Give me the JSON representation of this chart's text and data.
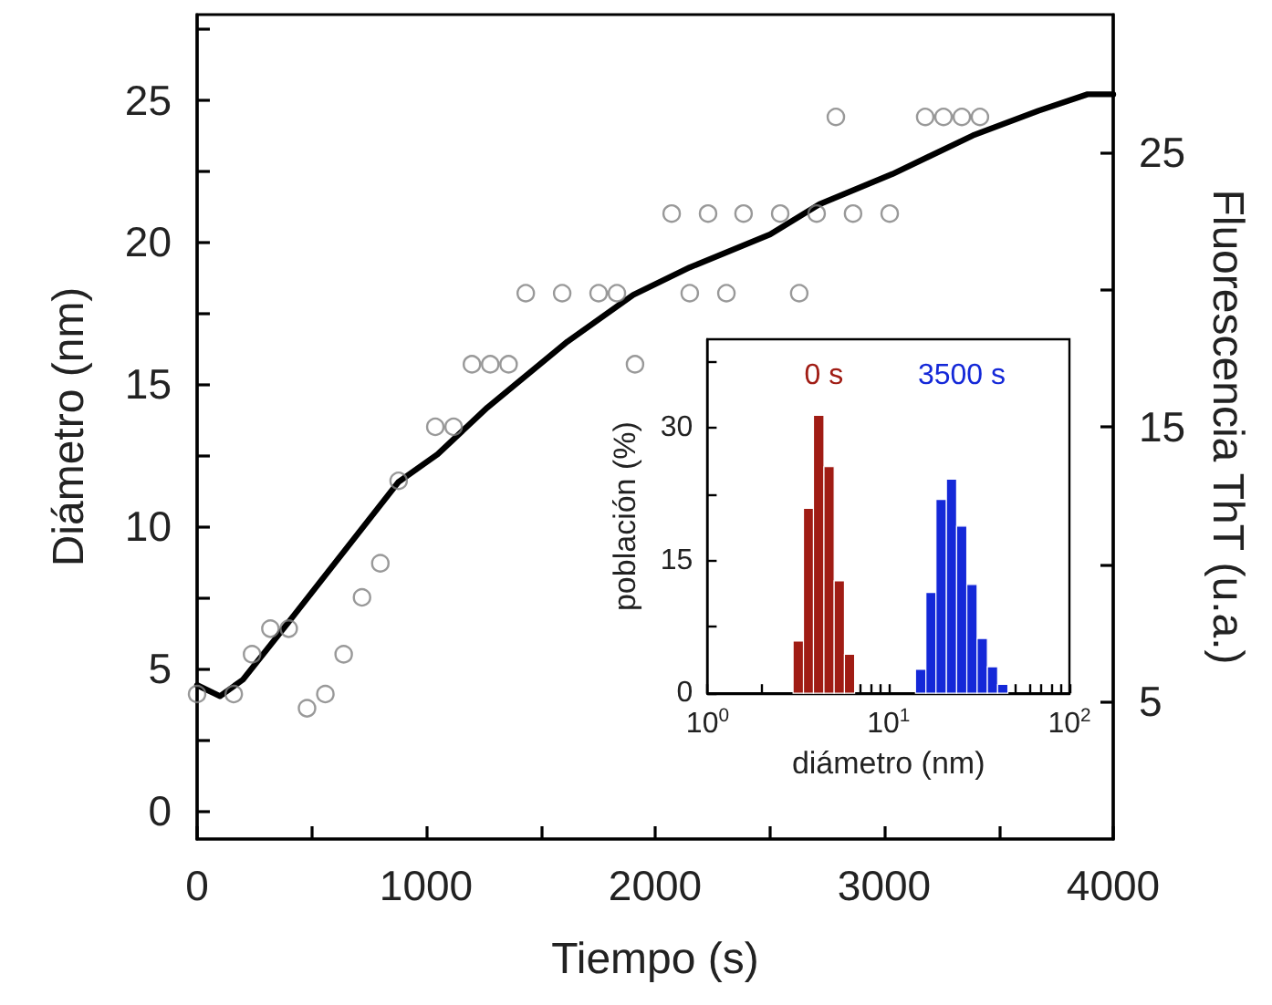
{
  "chart_data": [
    {
      "type": "scatter",
      "xlabel": "Tiempo (s)",
      "ylabel": "Diámetro (nm)",
      "y2label": "Fluorescencia ThT (u.a.)",
      "xlim": [
        0,
        4000
      ],
      "xticks": [
        0,
        {
          "value": 500,
          "label": null
        },
        1000,
        {
          "value": 1500,
          "label": null
        },
        2000,
        {
          "value": 2500,
          "label": null
        },
        3000,
        {
          "value": 3500,
          "label": null
        },
        4000
      ],
      "ylim": [
        -1,
        28
      ],
      "yticks": [
        0,
        {
          "value": 2.5,
          "label": null
        },
        5,
        {
          "value": 7.5,
          "label": null
        },
        10,
        {
          "value": 12.5,
          "label": null
        },
        15,
        {
          "value": 17.5,
          "label": null
        },
        20,
        {
          "value": 22.5,
          "label": null
        },
        25,
        {
          "value": 27.5,
          "label": null
        }
      ],
      "y2lim": [
        0,
        30
      ],
      "y2ticks": [
        5,
        {
          "value": 10,
          "label": null
        },
        15,
        {
          "value": 20,
          "label": null
        },
        25
      ],
      "grid": false,
      "legend": false,
      "series": [
        {
          "marker": "circle",
          "color": "#808080",
          "x": [
            0,
            160,
            240,
            320,
            400,
            480,
            560,
            640,
            720,
            800,
            880,
            1040,
            1120,
            1200,
            1280,
            1360,
            1435,
            1594,
            1753,
            1833,
            1912,
            2072,
            2151,
            2231,
            2311,
            2386,
            2546,
            2629,
            2705,
            2789,
            2864,
            3024,
            3179,
            3259,
            3339,
            3418
          ],
          "values": [
            4.1,
            4.1,
            5.5,
            6.4,
            6.4,
            3.6,
            4.1,
            5.5,
            7.5,
            8.7,
            11.6,
            13.5,
            13.5,
            15.7,
            15.7,
            15.7,
            18.2,
            18.2,
            18.2,
            18.2,
            15.7,
            21.0,
            18.2,
            21.0,
            18.2,
            21.0,
            21.0,
            18.2,
            21.0,
            24.4,
            21.0,
            21.0,
            24.4,
            24.4,
            24.4,
            24.4
          ]
        },
        {
          "type": "line",
          "axis": "y2",
          "marker": "none",
          "line_style": "solid",
          "color": "#000000",
          "x": [
            0,
            100,
            200,
            400,
            880,
            1050,
            1267,
            1617,
            1904,
            2151,
            2502,
            2717,
            3036,
            3387,
            3673,
            3888,
            4000
          ],
          "values": [
            5.6,
            5.2,
            5.8,
            7.9,
            13.0,
            14.0,
            15.7,
            18.1,
            19.8,
            20.8,
            22.0,
            23.1,
            24.2,
            25.6,
            26.5,
            27.1,
            27.1
          ]
        }
      ]
    },
    {
      "type": "histogram",
      "xlabel": "diámetro (nm)",
      "ylabel": "población (%)",
      "log": "x",
      "xlim": [
        1,
        100
      ],
      "xticks": [
        {
          "value": 1,
          "label": "10$^{0}$"
        },
        {
          "value": 2,
          "label": null
        },
        {
          "value": 3,
          "label": null
        },
        {
          "value": 4,
          "label": null
        },
        {
          "value": 5,
          "label": null
        },
        {
          "value": 6,
          "label": null
        },
        {
          "value": 7,
          "label": null
        },
        {
          "value": 8,
          "label": null
        },
        {
          "value": 9,
          "label": null
        },
        {
          "value": 10,
          "label": "10$^{1}$"
        },
        {
          "value": 20,
          "label": null
        },
        {
          "value": 30,
          "label": null
        },
        {
          "value": 40,
          "label": null
        },
        {
          "value": 50,
          "label": null
        },
        {
          "value": 60,
          "label": null
        },
        {
          "value": 70,
          "label": null
        },
        {
          "value": 80,
          "label": null
        },
        {
          "value": 90,
          "label": null
        },
        {
          "value": 100,
          "label": "10$^{2}$"
        }
      ],
      "ylim": [
        0,
        40
      ],
      "yticks": [
        0,
        {
          "value": 7.5,
          "label": null
        },
        15,
        {
          "value": 22.5,
          "label": null
        },
        30,
        {
          "value": 37.5,
          "label": null
        }
      ],
      "grid": false,
      "legend": false,
      "bins": [
        2.97,
        3.39,
        3.85,
        4.4,
        5.01,
        5.71,
        6.5,
        14.1,
        16.1,
        18.3,
        20.9,
        23.8,
        27.1,
        30.9,
        35.2,
        40.1,
        45.7
      ],
      "series": [
        {
          "name": "0 s",
          "color": "#a01c14",
          "values": [
            5.9,
            20.9,
            31.4,
            25.6,
            12.7,
            4.4,
            null,
            null,
            null,
            null,
            null,
            null,
            null,
            null,
            null,
            null
          ]
        },
        {
          "name": "3500 s",
          "color": "#1428d8",
          "values": [
            null,
            null,
            null,
            null,
            null,
            null,
            null,
            2.7,
            11.4,
            21.9,
            24.2,
            18.9,
            12.3,
            6.2,
            3.0,
            1.0
          ]
        }
      ]
    }
  ]
}
